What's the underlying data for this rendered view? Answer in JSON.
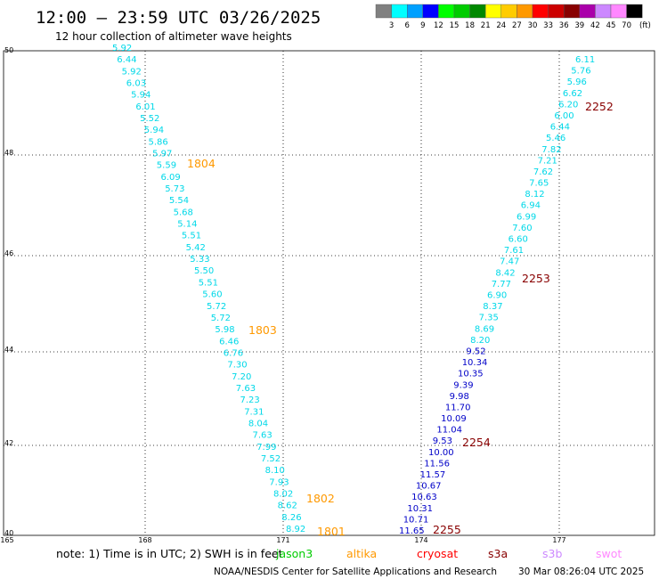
{
  "header": {
    "title": "12:00 – 23:59 UTC 03/26/2025",
    "subtitle": "12 hour collection of altimeter wave heights"
  },
  "legend": {
    "labels": [
      "3",
      "6",
      "9",
      "12",
      "15",
      "18",
      "21",
      "24",
      "27",
      "30",
      "33",
      "36",
      "39",
      "42",
      "45",
      "70",
      "(ft)"
    ],
    "colors": [
      "#808080",
      "#00ffff",
      "#00a0ff",
      "#0000ff",
      "#00ff00",
      "#00cc00",
      "#008800",
      "#ffff00",
      "#ffcc00",
      "#ff9900",
      "#ff0000",
      "#cc0000",
      "#880000",
      "#aa00aa",
      "#cc88ff",
      "#ff88ff",
      "#000000"
    ]
  },
  "axes": {
    "lat_labels": [
      "50",
      "48",
      "46",
      "44",
      "42",
      "40"
    ],
    "lon_labels": [
      "165",
      "168",
      "171",
      "174",
      "177"
    ],
    "lon_label_positions": [
      "165",
      "168",
      "171",
      "174",
      "177"
    ]
  },
  "wave_colors": {
    "band_1": "#00d8e8",
    "band_2": "#0000c8"
  },
  "tracks": [
    {
      "name": "track-west",
      "observations": [
        "5.92",
        "6.44",
        "5.92",
        "6.03",
        "5.94",
        "6.01",
        "5.52",
        "5.94",
        "5.86",
        "5.97",
        "5.59",
        "6.09",
        "5.73",
        "5.54",
        "5.68",
        "5.14",
        "5.51",
        "5.42",
        "5.33",
        "5.50",
        "5.51",
        "5.60",
        "5.72",
        "5.72",
        "5.98",
        "6.46",
        "6.76",
        "7.30",
        "7.20",
        "7.63",
        "7.23",
        "7.31",
        "8.04",
        "7.63",
        "7.99",
        "7.52",
        "8.10",
        "7.93",
        "8.02",
        "8.62",
        "8.26",
        "8.92"
      ],
      "time_labels": [
        "1804",
        "1803",
        "1802",
        "1801"
      ]
    },
    {
      "name": "track-east",
      "observations": [
        "6.11",
        "5.76",
        "5.96",
        "6.62",
        "6.20",
        "6.00",
        "6.44",
        "5.46",
        "7.82",
        "7.21",
        "7.62",
        "7.65",
        "8.12",
        "6.94",
        "6.99",
        "7.60",
        "6.60",
        "7.61",
        "7.47",
        "8.42",
        "7.77",
        "6.90",
        "8.37",
        "7.35",
        "8.69",
        "8.20",
        "9.52",
        "10.34",
        "10.35",
        "9.39",
        "9.98",
        "11.70",
        "10.09",
        "11.04",
        "9.53",
        "10.00",
        "11.56",
        "11.57",
        "10.67",
        "10.63",
        "10.31",
        "10.71",
        "11.65"
      ],
      "time_labels": [
        "2252",
        "2253",
        "2254",
        "2255"
      ]
    }
  ],
  "time_colors": {
    "west": "#ff9900",
    "east": "#880000"
  },
  "footer": {
    "note": "note:  1) Time is in UTC;  2) SWH is in feet",
    "satellites": [
      {
        "label": "jason3",
        "color": "#00cc00"
      },
      {
        "label": "altika",
        "color": "#ff9900"
      },
      {
        "label": "cryosat",
        "color": "#ff0000"
      },
      {
        "label": "s3a",
        "color": "#880000"
      },
      {
        "label": "s3b",
        "color": "#cc88ff"
      },
      {
        "label": "swot",
        "color": "#ff88ff"
      }
    ],
    "credit": "NOAA/NESDIS Center for Satellite Applications and Research",
    "timestamp": "30 Mar 08:26:04 UTC 2025"
  }
}
